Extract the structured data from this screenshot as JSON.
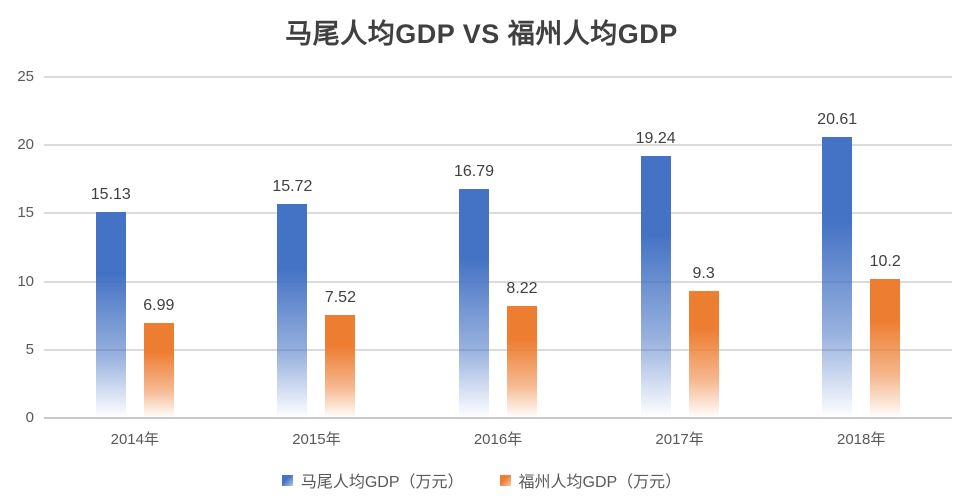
{
  "chart_data": {
    "type": "bar",
    "title": "马尾人均GDP VS 福州人均GDP",
    "categories": [
      "2014年",
      "2015年",
      "2016年",
      "2017年",
      "2018年"
    ],
    "series": [
      {
        "name": "马尾人均GDP（万元）",
        "color": "#4472C4",
        "values": [
          15.13,
          15.72,
          16.79,
          19.24,
          20.61
        ]
      },
      {
        "name": "福州人均GDP（万元）",
        "color": "#ED7D31",
        "values": [
          6.99,
          7.52,
          8.22,
          9.3,
          10.2
        ]
      }
    ],
    "xlabel": "",
    "ylabel": "",
    "ylim": [
      0,
      25
    ],
    "yticks": [
      0,
      5,
      10,
      15,
      20,
      25
    ],
    "grid": true,
    "legend_position": "bottom",
    "colors": {
      "gridline": "#DBDBDB",
      "axis_line": "#C9C9C9",
      "axis_text": "#595959",
      "value_label_text": "#404040",
      "title_text": "#404040",
      "background": "#ffffff"
    }
  }
}
